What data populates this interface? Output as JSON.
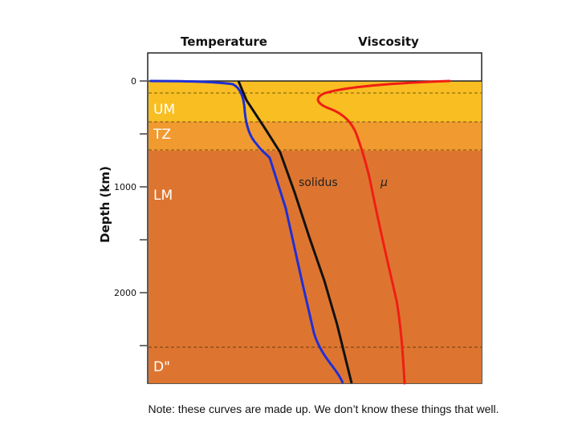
{
  "headers": {
    "temperature": "Temperature",
    "viscosity": "Viscosity"
  },
  "y_axis_label": "Depth (km)",
  "depth_ticks": [
    "0",
    "1000",
    "2000"
  ],
  "zones": {
    "upper_mantle": "UM",
    "transition_zone": "TZ",
    "lower_mantle": "LM",
    "d_double_prime": "D\""
  },
  "curve_labels": {
    "solidus": "solidus",
    "viscosity": "μ"
  },
  "note": "Note: these curves are made up.  We don’t know these things that well.",
  "colors": {
    "upper_mantle": "#f8be22",
    "transition_zone": "#f09a30",
    "lower_mantle": "#dd7530",
    "temperature_curve": "#1f2fd6",
    "solidus_curve": "#111111",
    "viscosity_curve": "#f01e14"
  }
}
